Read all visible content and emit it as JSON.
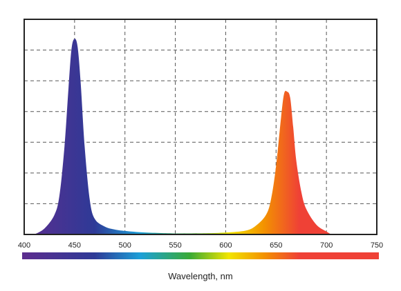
{
  "chart_data": {
    "type": "area",
    "title": "",
    "xlabel": "Wavelength, nm",
    "ylabel": "",
    "xlim": [
      400,
      750
    ],
    "ylim": [
      0,
      1.1
    ],
    "x_ticks": [
      400,
      450,
      500,
      550,
      600,
      650,
      700,
      750
    ],
    "y_gridlines": 6,
    "grid": true,
    "legend": "none",
    "spectrum_bar": {
      "from_nm": 400,
      "to_nm": 750
    },
    "colors": {
      "violet": "#5b2d8e",
      "blue": "#2e3a97",
      "cyan": "#1ca0d8",
      "green": "#3aaa35",
      "yellow": "#f2e500",
      "orange": "#f39200",
      "red": "#ef4136"
    },
    "series": [
      {
        "x": [
          410,
          420,
          430,
          435,
          440,
          444,
          447,
          450,
          453,
          456,
          460,
          465,
          470,
          480,
          490,
          500,
          520,
          550
        ],
        "y": [
          0,
          0.03,
          0.1,
          0.2,
          0.45,
          0.75,
          0.95,
          1.0,
          0.96,
          0.78,
          0.45,
          0.18,
          0.08,
          0.04,
          0.025,
          0.018,
          0.01,
          0.005
        ]
      },
      {
        "x": [
          550,
          580,
          600,
          620,
          630,
          640,
          645,
          650,
          655,
          658,
          661,
          664,
          667,
          670,
          675,
          680,
          690,
          700,
          705
        ],
        "y": [
          0.005,
          0.006,
          0.01,
          0.02,
          0.045,
          0.1,
          0.18,
          0.35,
          0.6,
          0.72,
          0.73,
          0.7,
          0.55,
          0.38,
          0.22,
          0.13,
          0.05,
          0.015,
          0
        ]
      }
    ]
  }
}
